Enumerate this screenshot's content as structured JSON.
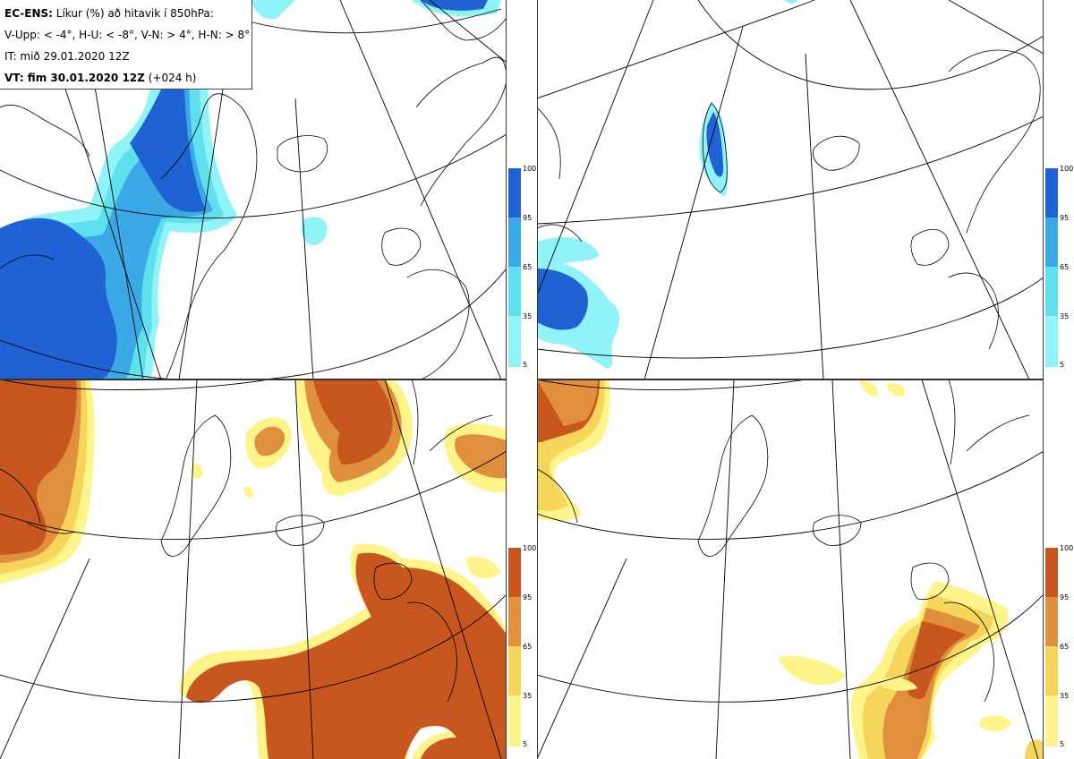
{
  "header": {
    "model": "EC-ENS:",
    "title": "Líkur (%) að hitavik í 850hPa:",
    "thresholds": "V-Upp: < -4°, H-U: < -8°, V-N: > 4°, H-N: > 8°",
    "init_time": "IT: mið 29.01.2020 12Z",
    "valid_label": "VT: fim 30.01.2020 12Z",
    "lead_time": "(+024 h)"
  },
  "colors": {
    "cold_levels": [
      "#8ff3f7",
      "#5fe0ee",
      "#3aa9e6",
      "#1f62d4"
    ],
    "warm_levels": [
      "#fff48a",
      "#f6d65a",
      "#e08f3c",
      "#c8561f"
    ],
    "land_outline": "#000000",
    "graticule": "#000000"
  },
  "colorbar_ticks": [
    "100",
    "95",
    "65",
    "35",
    "5"
  ],
  "panels": [
    {
      "id": "v-upp",
      "scheme": "cold"
    },
    {
      "id": "h-u",
      "scheme": "cold"
    },
    {
      "id": "v-n",
      "scheme": "warm"
    },
    {
      "id": "h-n",
      "scheme": "warm"
    }
  ]
}
